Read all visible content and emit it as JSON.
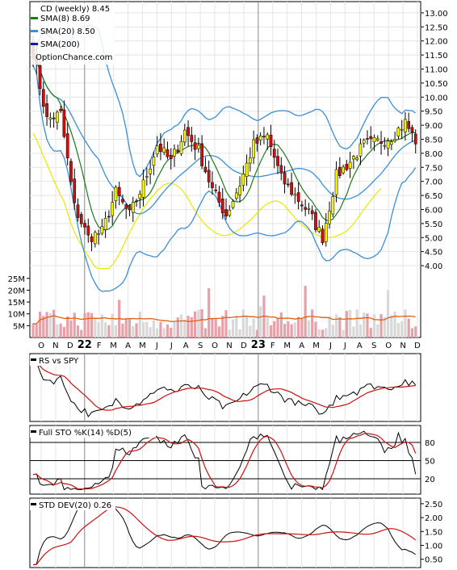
{
  "chart_data": [
    {
      "type": "candlestick",
      "panel": "price",
      "legend": {
        "title": "CD (weekly) 8.45",
        "entries": [
          {
            "label": "SMA(8) 8.69",
            "color": "#1a7a1a"
          },
          {
            "label": "SMA(20) 8.50",
            "color": "#3a8fd8"
          },
          {
            "label": "SMA(200)",
            "color": "#1a1aa0"
          }
        ],
        "watermark": "OptionChance.com"
      },
      "y_ticks": [
        "13.00",
        "12.50",
        "12.00",
        "11.50",
        "11.00",
        "10.50",
        "10.00",
        "9.50",
        "9.00",
        "8.50",
        "8.00",
        "7.50",
        "7.00",
        "6.50",
        "6.00",
        "5.50",
        "5.00",
        "4.50",
        "4.00"
      ],
      "ylim": [
        3.8,
        13.4
      ],
      "x_labels": [
        "O",
        "N",
        "D",
        "22",
        "F",
        "M",
        "A",
        "M",
        "J",
        "J",
        "A",
        "S",
        "O",
        "N",
        "D",
        "23",
        "F",
        "M",
        "A",
        "M",
        "J",
        "J",
        "A",
        "S",
        "O",
        "N",
        "D"
      ],
      "close_anchors": [
        [
          0,
          11.6
        ],
        [
          4,
          9.2
        ],
        [
          8,
          9.4
        ],
        [
          12,
          6.1
        ],
        [
          16,
          5.0
        ],
        [
          20,
          5.2
        ],
        [
          24,
          6.6
        ],
        [
          28,
          5.8
        ],
        [
          32,
          6.9
        ],
        [
          36,
          8.3
        ],
        [
          40,
          7.7
        ],
        [
          44,
          8.8
        ],
        [
          48,
          8.1
        ],
        [
          52,
          6.7
        ],
        [
          56,
          5.8
        ],
        [
          60,
          6.9
        ],
        [
          64,
          8.3
        ],
        [
          68,
          8.6
        ],
        [
          72,
          7.1
        ],
        [
          76,
          6.5
        ],
        [
          80,
          5.9
        ],
        [
          84,
          5.0
        ],
        [
          88,
          7.2
        ],
        [
          92,
          7.7
        ],
        [
          96,
          8.3
        ],
        [
          100,
          8.4
        ],
        [
          104,
          8.6
        ],
        [
          108,
          9.1
        ],
        [
          111,
          8.45
        ]
      ],
      "volume_ticks": [
        "25M",
        "20M",
        "15M",
        "10M",
        "5M"
      ],
      "volume_max": 28,
      "colors": {
        "up": "#f5f500",
        "down": "#cc1111",
        "sma8": "#1a7a1a",
        "sma20": "#3a8fd8",
        "bands": "#3a8fd8",
        "yellow_line": "#e8e800",
        "volume_up": "#e8a0a8",
        "volume_down": "#d8d8d8",
        "volume_avg": "#e06010"
      }
    },
    {
      "type": "line",
      "panel": "rs",
      "label": "RS vs SPY",
      "series": [
        {
          "name": "RS vs SPY",
          "color": "#000000"
        },
        {
          "name": "",
          "color": "#cc1111"
        }
      ]
    },
    {
      "type": "line",
      "panel": "stochastic",
      "label": "Full STO %K(14) %D(5)",
      "y_ticks": [
        "80",
        "50",
        "20"
      ],
      "ylim": [
        0,
        100
      ],
      "series": [
        {
          "name": "%K(14)",
          "color": "#000000"
        },
        {
          "name": "%D(5)",
          "color": "#cc1111"
        }
      ]
    },
    {
      "type": "line",
      "panel": "stddev",
      "label": "STD DEV(20) 0.26",
      "y_ticks": [
        "2.50",
        "2.00",
        "1.50",
        "1.00",
        "0.50"
      ],
      "ylim": [
        0.2,
        2.7
      ],
      "series": [
        {
          "name": "STD DEV(20)",
          "color": "#000000"
        },
        {
          "name": "",
          "color": "#cc1111"
        }
      ]
    }
  ]
}
